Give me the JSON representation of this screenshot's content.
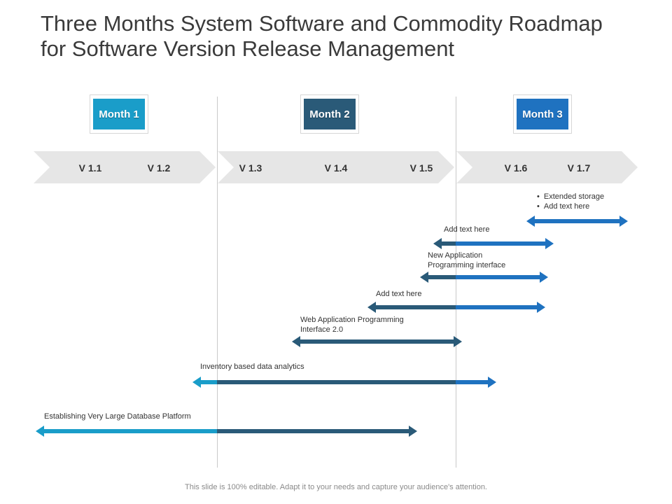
{
  "title": {
    "line1": "Three Months System Software and Commodity Roadmap",
    "line2": "for Software Version Release Management"
  },
  "months": [
    {
      "label": "Month 1",
      "color": "#1a9dc9"
    },
    {
      "label": "Month 2",
      "color": "#2a5a78"
    },
    {
      "label": "Month 3",
      "color": "#1f72c0"
    }
  ],
  "versions": [
    "V 1.1",
    "V 1.2",
    "V 1.3",
    "V 1.4",
    "V 1.5",
    "V 1.6",
    "V 1.7"
  ],
  "tasks": [
    {
      "bullets": [
        "Extended storage",
        "Add text here"
      ]
    },
    {
      "label": "Add text here"
    },
    {
      "label_lines": [
        "New Application",
        "Programming interface"
      ]
    },
    {
      "label": "Add text here"
    },
    {
      "label_lines": [
        "Web Application Programming",
        "Interface 2.0"
      ]
    },
    {
      "label": "Inventory  based data analytics"
    },
    {
      "label": "Establishing Very Large Database Platform"
    }
  ],
  "colors": {
    "month1": "#1a9dc9",
    "month2": "#2a5a78",
    "month3": "#1f72c0",
    "chevron": "#e6e6e6"
  },
  "footer": "This slide is 100% editable. Adapt it to your needs and capture your audience's attention."
}
